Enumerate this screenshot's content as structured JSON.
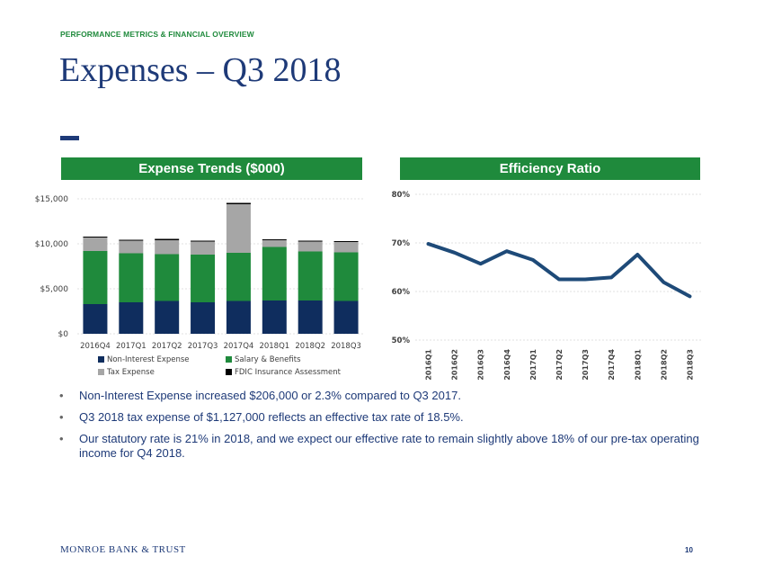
{
  "header": {
    "section_label": "PERFORMANCE METRICS & FINANCIAL OVERVIEW",
    "title": "Expenses – Q3 2018"
  },
  "panels": {
    "left_title": "Expense Trends ($000)",
    "right_title": "Efficiency Ratio"
  },
  "chart_data": [
    {
      "type": "bar",
      "stacked": true,
      "title": "Expense Trends ($000)",
      "categories": [
        "2016Q4",
        "2017Q1",
        "2017Q2",
        "2017Q3",
        "2017Q4",
        "2018Q1",
        "2018Q2",
        "2018Q3"
      ],
      "series": [
        {
          "name": "Non-Interest Expense",
          "color": "#0f2d5e",
          "values": [
            3300,
            3500,
            3650,
            3500,
            3650,
            3700,
            3700,
            3650
          ]
        },
        {
          "name": "Salary & Benefits",
          "color": "#1f8a3c",
          "values": [
            5900,
            5450,
            5200,
            5300,
            5350,
            5950,
            5450,
            5400
          ]
        },
        {
          "name": "Tax Expense",
          "color": "#a6a6a6",
          "values": [
            1500,
            1400,
            1550,
            1450,
            5400,
            750,
            1100,
            1150
          ]
        },
        {
          "name": "FDIC Insurance Assessment",
          "color": "#000000",
          "values": [
            100,
            100,
            150,
            100,
            150,
            100,
            100,
            100
          ]
        }
      ],
      "yticks": [
        "$0",
        "$5,000",
        "$10,000",
        "$15,000"
      ],
      "ylim": [
        0,
        15000
      ],
      "grid": true,
      "legend_position": "bottom"
    },
    {
      "type": "line",
      "title": "Efficiency Ratio",
      "categories": [
        "2016Q1",
        "2016Q2",
        "2016Q3",
        "2016Q4",
        "2017Q1",
        "2017Q2",
        "2017Q3",
        "2017Q4",
        "2018Q1",
        "2018Q2",
        "2018Q3"
      ],
      "series": [
        {
          "color": "#1e4a78",
          "values": [
            69.8,
            68.0,
            65.7,
            68.3,
            66.5,
            62.5,
            62.5,
            62.9,
            67.6,
            61.9,
            59.0
          ]
        }
      ],
      "yticks": [
        "50%",
        "60%",
        "70%",
        "80%"
      ],
      "ylim": [
        50,
        80
      ],
      "grid": true
    }
  ],
  "bullets": [
    "Non-Interest Expense increased $206,000 or 2.3% compared to Q3 2017.",
    "Q3 2018 tax expense of $1,127,000 reflects an effective tax rate of 18.5%.",
    "Our statutory rate is 21% in 2018, and we expect our effective rate to remain slightly above 18% of our pre-tax operating income for Q4 2018."
  ],
  "bullet_marker": "•",
  "footer": {
    "logo": "MONROE BANK & TRUST",
    "page_number": "10"
  }
}
